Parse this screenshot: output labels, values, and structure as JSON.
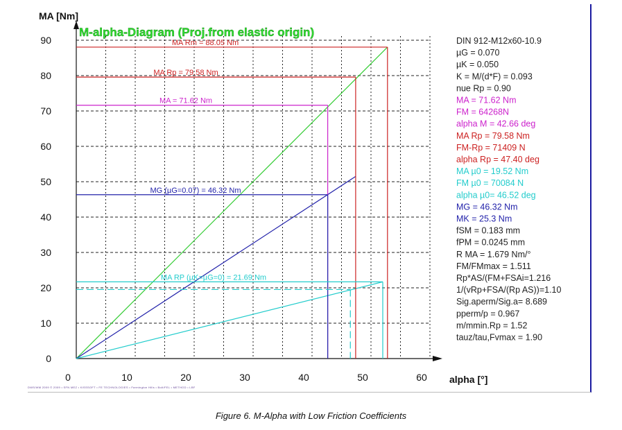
{
  "chart_data": {
    "type": "line",
    "title": "M-alpha-Diagram (Proj.from elastic origin)",
    "ylabel": "MA [Nm]",
    "xlabel": "alpha [°]",
    "xlim": [
      0,
      60
    ],
    "ylim": [
      0,
      90
    ],
    "x_ticks": [
      "0",
      "10",
      "20",
      "30",
      "40",
      "50",
      "60"
    ],
    "y_ticks": [
      "0",
      "10",
      "20",
      "30",
      "40",
      "50",
      "60",
      "70",
      "80",
      "90"
    ],
    "grid": true,
    "series": [
      {
        "key": "elastic",
        "color": "#33cc33",
        "points": [
          [
            0,
            0
          ],
          [
            52.8,
            88.05
          ]
        ]
      },
      {
        "key": "mg",
        "color": "#2222aa",
        "points": [
          [
            0,
            0
          ],
          [
            47.4,
            51.5
          ]
        ]
      },
      {
        "key": "mu0",
        "color": "#22cccc",
        "points": [
          [
            0,
            0
          ],
          [
            52.0,
            21.69
          ]
        ]
      }
    ],
    "markers": [
      {
        "key": "rm",
        "label": "MA Rm = 88.05 Nm",
        "y": 88.05,
        "x": 52.8,
        "color": "#cc2222"
      },
      {
        "key": "rp",
        "label": "MA Rp = 79.58 Nm",
        "y": 79.58,
        "x": 47.4,
        "color": "#cc2222"
      },
      {
        "key": "ma",
        "label": "MA = 71.62 Nm",
        "y": 71.62,
        "x": 42.66,
        "color": "#cc22cc"
      },
      {
        "key": "mg",
        "label": "MG (µG=0.07) = 46.32 Nm",
        "y": 46.32,
        "x": 42.66,
        "color": "#2222aa"
      },
      {
        "key": "marp",
        "label": "MA RP (µK=µG=0) = 21.69 Nm",
        "y": 21.69,
        "x": 52.0,
        "color": "#22cccc"
      },
      {
        "key": "mu0",
        "label": "",
        "y": 19.52,
        "x": 46.5,
        "color": "#22cccc",
        "dashed": true
      }
    ]
  },
  "info": [
    {
      "text": "DIN 912-M12x60-10.9",
      "color": "#222222"
    },
    {
      "text": "µG = 0.070",
      "color": "#222222"
    },
    {
      "text": "µK = 0.050",
      "color": "#222222"
    },
    {
      "text": "K = M/(d*F) = 0.093",
      "color": "#222222"
    },
    {
      "text": "nue Rp = 0.90",
      "color": "#222222"
    },
    {
      "text": "MA = 71.62 Nm",
      "color": "#cc22cc"
    },
    {
      "text": "FM = 64268N",
      "color": "#cc22cc"
    },
    {
      "text": "alpha M = 42.66 deg",
      "color": "#cc22cc"
    },
    {
      "text": "MA Rp = 79.58 Nm",
      "color": "#cc2222"
    },
    {
      "text": "FM-Rp = 71409 N",
      "color": "#cc2222"
    },
    {
      "text": "alpha Rp = 47.40 deg",
      "color": "#cc2222"
    },
    {
      "text": "MA µ0 = 19.52 Nm",
      "color": "#22cccc"
    },
    {
      "text": "FM µ0 = 70084 N",
      "color": "#22cccc"
    },
    {
      "text": "alpha µ0= 46.52 deg",
      "color": "#22cccc"
    },
    {
      "text": "MG = 46.32 Nm",
      "color": "#2222aa"
    },
    {
      "text": "MK = 25.3 Nm",
      "color": "#2222aa"
    },
    {
      "text": "fSM = 0.183 mm",
      "color": "#222222"
    },
    {
      "text": "fPM = 0.0245 mm",
      "color": "#222222"
    },
    {
      "text": "R MA = 1.679 Nm/°",
      "color": "#222222"
    },
    {
      "text": "FM/FMmax = 1.511",
      "color": "#222222"
    },
    {
      "text": "Rp*AS/(FM+FSAi=1.216",
      "color": "#222222"
    },
    {
      "text": "1/(vRp+FSA/(Rp AS))=1.10",
      "color": "#222222"
    },
    {
      "text": "Sig.aperm/Sig.a= 8.689",
      "color": "#222222"
    },
    {
      "text": "pperm/p = 0.967",
      "color": "#222222"
    },
    {
      "text": "m/mmin.Rp = 1.52",
      "color": "#222222"
    },
    {
      "text": "tauz/tau,Fvmax = 1.90",
      "color": "#222222"
    }
  ],
  "footer": "DWS/WM 2009 © 2009 • SFN MEZ • KISSSOFT • FE TECHNOLOGIES • Farmington Hills • Bolt/FEL • METHOD • LBF",
  "caption": "Figure 6. M-Alpha with Low Friction Coefficients"
}
